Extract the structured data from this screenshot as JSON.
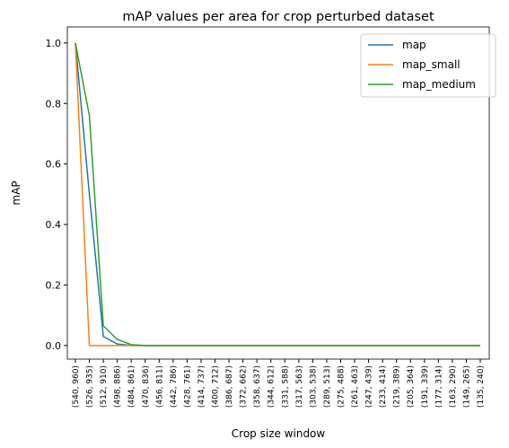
{
  "chart_data": {
    "type": "line",
    "title": "mAP values per area for crop perturbed dataset",
    "x_label": "Crop size window",
    "y_label": "mAP",
    "categories": [
      "(540, 960)",
      "(526, 935)",
      "(512, 910)",
      "(498, 886)",
      "(484, 861)",
      "(470, 836)",
      "(456, 811)",
      "(442, 786)",
      "(428, 761)",
      "(414, 737)",
      "(400, 712)",
      "(386, 687)",
      "(372, 662)",
      "(358, 637)",
      "(344, 612)",
      "(331, 588)",
      "(317, 563)",
      "(303, 538)",
      "(289, 513)",
      "(275, 488)",
      "(261, 463)",
      "(247, 439)",
      "(233, 414)",
      "(219, 389)",
      "(205, 364)",
      "(191, 339)",
      "(177, 314)",
      "(163, 290)",
      "(149, 265)",
      "(135, 240)"
    ],
    "series": [
      {
        "name": "map",
        "color": "#1f77b4",
        "values": [
          1.0,
          0.5,
          0.03,
          0.005,
          0,
          0,
          0,
          0,
          0,
          0,
          0,
          0,
          0,
          0,
          0,
          0,
          0,
          0,
          0,
          0,
          0,
          0,
          0,
          0,
          0,
          0,
          0,
          0,
          0,
          0
        ]
      },
      {
        "name": "map_small",
        "color": "#ff7f0e",
        "values": [
          1.0,
          0,
          0,
          0,
          0,
          0,
          0,
          0,
          0,
          0,
          0,
          0,
          0,
          0,
          0,
          0,
          0,
          0,
          0,
          0,
          0,
          0,
          0,
          0,
          0,
          0,
          0,
          0,
          0,
          0
        ]
      },
      {
        "name": "map_medium",
        "color": "#2ca02c",
        "values": [
          1.0,
          0.76,
          0.065,
          0.02,
          0.003,
          0,
          0,
          0,
          0,
          0,
          0,
          0,
          0,
          0,
          0,
          0,
          0,
          0,
          0,
          0,
          0,
          0,
          0,
          0,
          0,
          0,
          0,
          0,
          0,
          0
        ]
      }
    ],
    "ylim": [
      -0.045,
      1.053
    ],
    "yticks": [
      {
        "value": 0,
        "label": "0.0"
      },
      {
        "value": 0.2,
        "label": "0.2"
      },
      {
        "value": 0.4,
        "label": "0.4"
      },
      {
        "value": 0.6,
        "label": "0.6"
      },
      {
        "value": 0.8,
        "label": "0.8"
      },
      {
        "value": 1,
        "label": "1.0"
      }
    ],
    "legend": "upper right"
  }
}
